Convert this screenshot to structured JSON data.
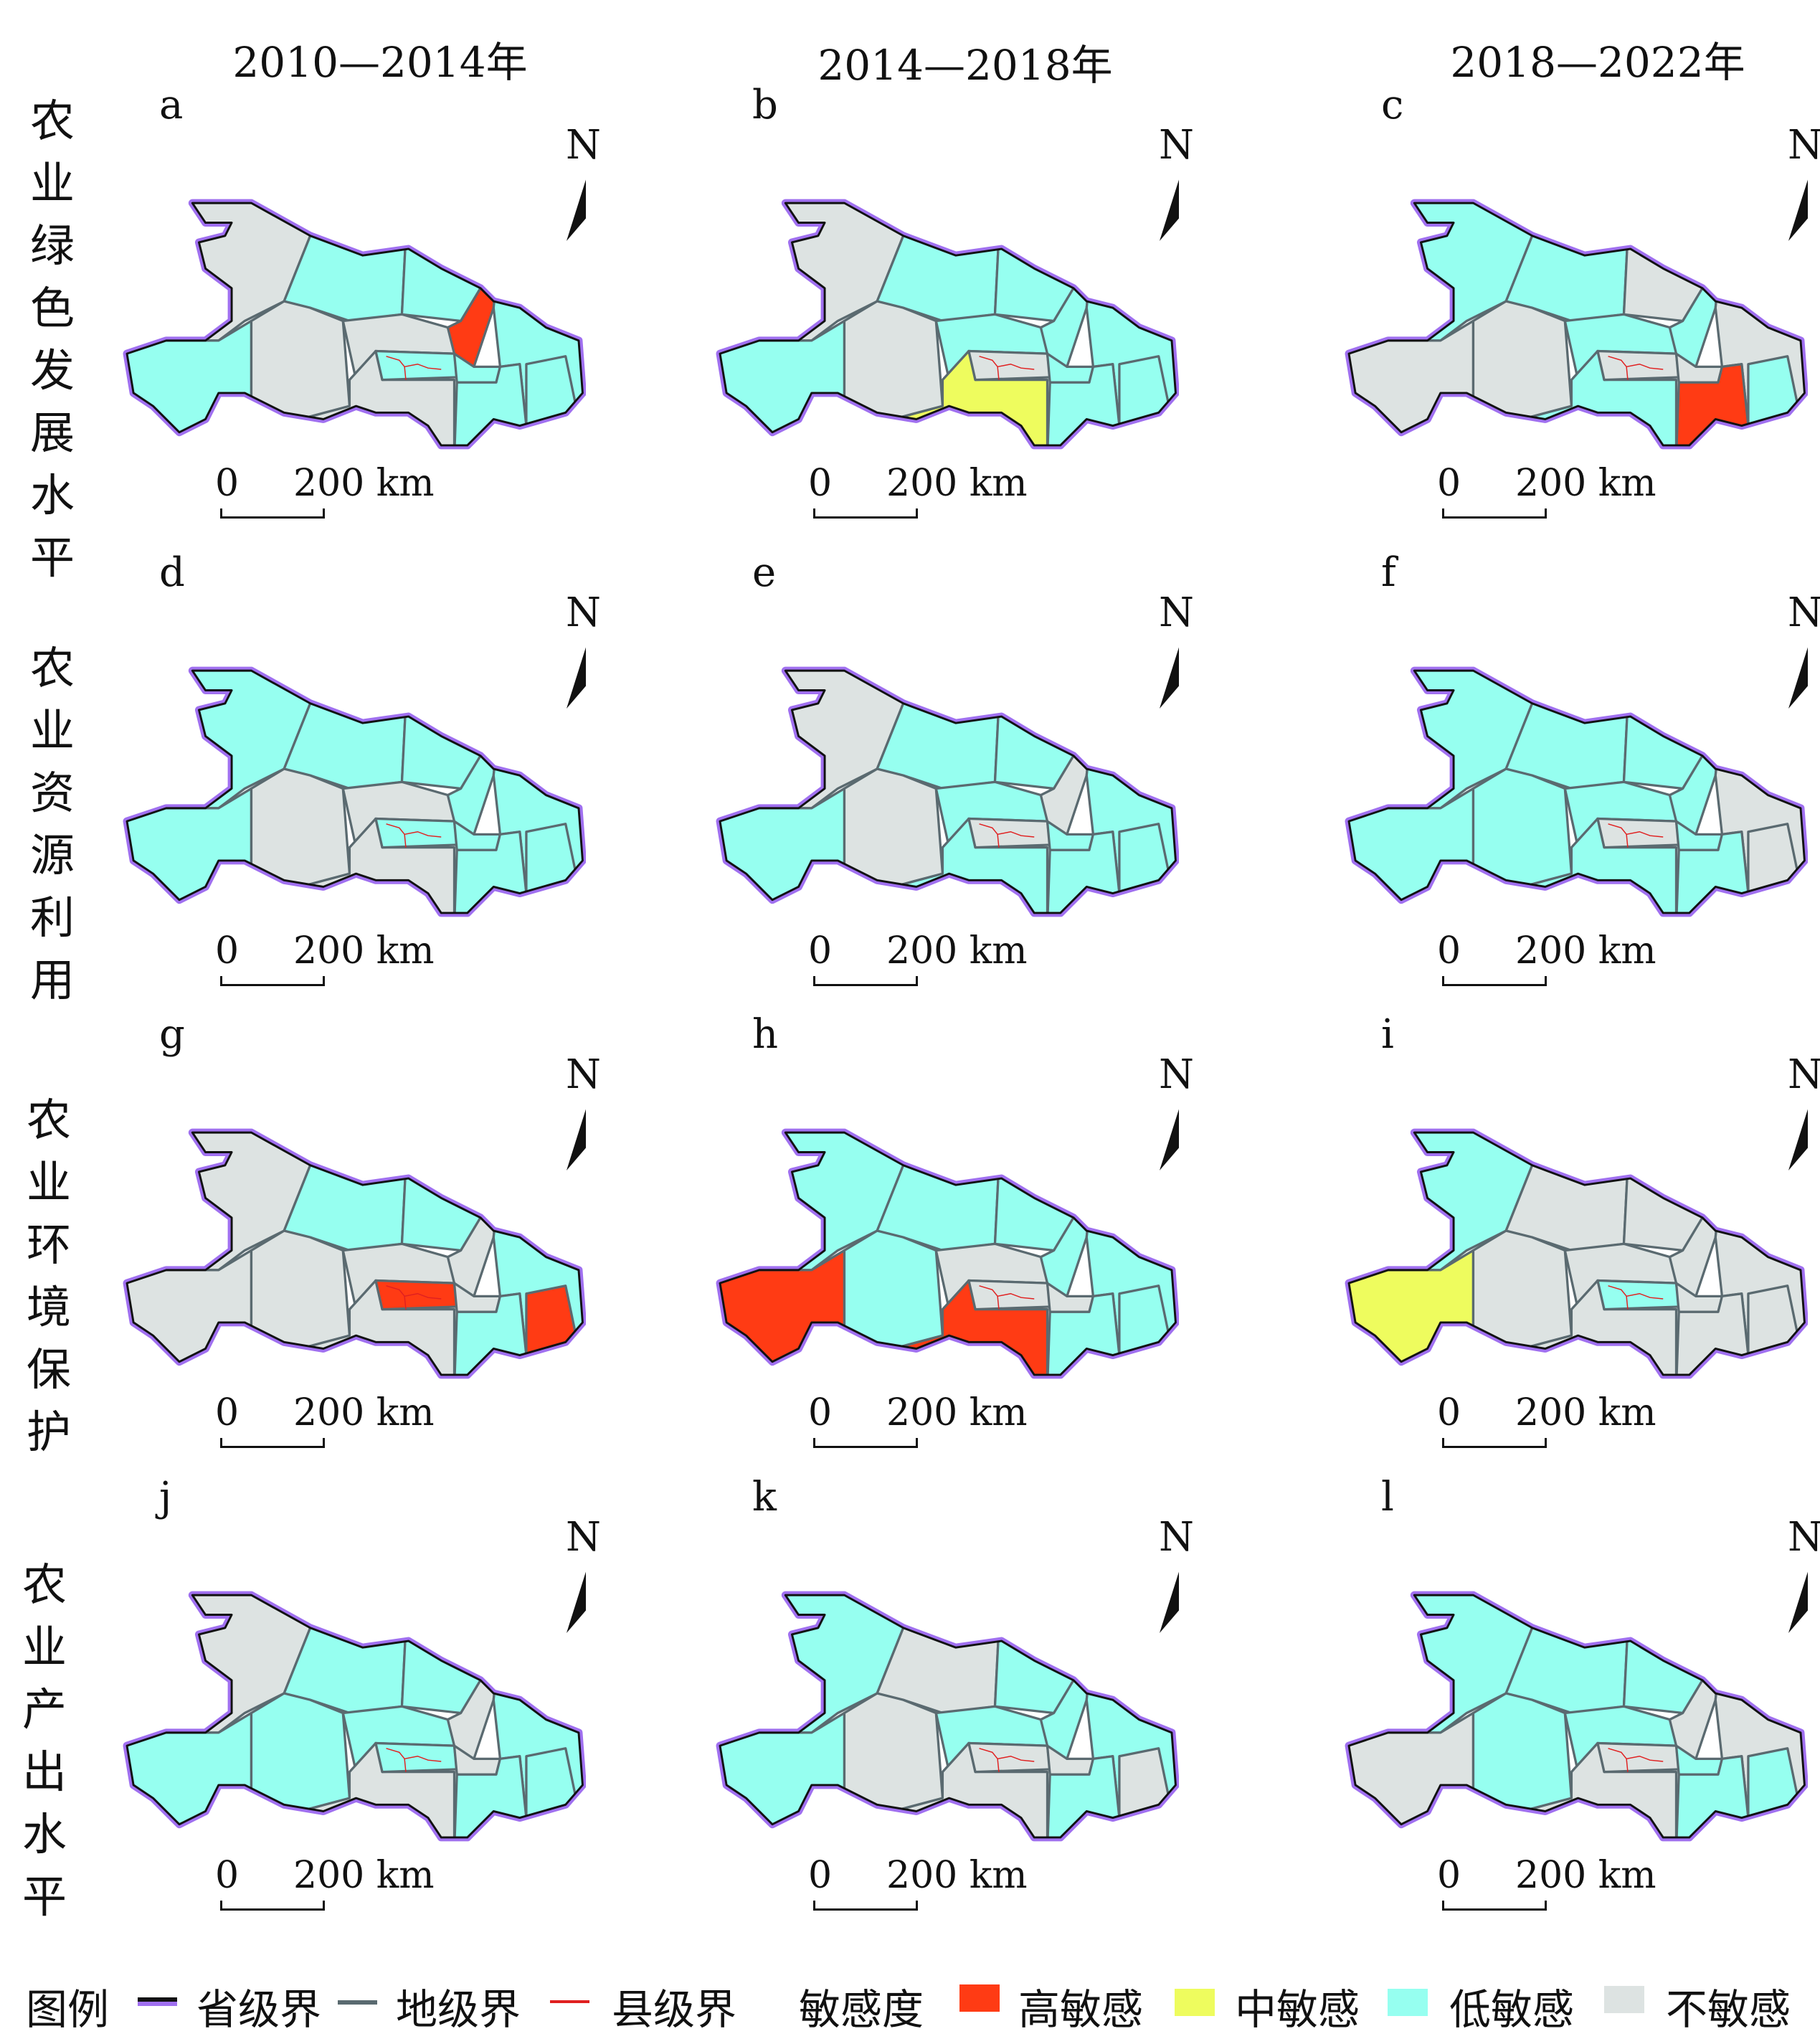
{
  "column_headers": [
    "2010—2014年",
    "2014—2018年",
    "2018—2022年"
  ],
  "row_labels": [
    "农业绿色发展水平",
    "农业资源利用",
    "农业环境保护",
    "农业产出水平"
  ],
  "colors": {
    "H": "#ff3b14",
    "M": "#eefc5e",
    "L": "#96fff0",
    "N": "#dde3e2",
    "province_border": "#a070f0",
    "city_border": "#5a6a70",
    "county_border": "#e02020"
  },
  "scale_bar": {
    "zero": "0",
    "distance": "200 km"
  },
  "north_label": "N",
  "panels": [
    {
      "letter": "a",
      "regions": [
        "N",
        "L",
        "L",
        "L",
        "H",
        "N",
        "N",
        "N",
        "L",
        "L",
        "L",
        "L",
        "L"
      ]
    },
    {
      "letter": "b",
      "regions": [
        "N",
        "L",
        "L",
        "L",
        "L",
        "N",
        "L",
        "M",
        "N",
        "L",
        "L",
        "L",
        "L"
      ]
    },
    {
      "letter": "c",
      "regions": [
        "L",
        "N",
        "L",
        "N",
        "L",
        "N",
        "L",
        "L",
        "N",
        "N",
        "N",
        "H",
        "L"
      ]
    },
    {
      "letter": "d",
      "regions": [
        "L",
        "L",
        "L",
        "L",
        "L",
        "N",
        "N",
        "N",
        "L",
        "L",
        "L",
        "L",
        "L"
      ]
    },
    {
      "letter": "e",
      "regions": [
        "N",
        "L",
        "L",
        "L",
        "N",
        "N",
        "L",
        "L",
        "N",
        "L",
        "L",
        "L",
        "L"
      ]
    },
    {
      "letter": "f",
      "regions": [
        "L",
        "L",
        "L",
        "L",
        "L",
        "L",
        "L",
        "L",
        "N",
        "L",
        "N",
        "L",
        "N"
      ]
    },
    {
      "letter": "g",
      "regions": [
        "N",
        "N",
        "L",
        "L",
        "N",
        "N",
        "N",
        "N",
        "H",
        "N",
        "L",
        "L",
        "H"
      ]
    },
    {
      "letter": "h",
      "regions": [
        "L",
        "H",
        "L",
        "L",
        "L",
        "L",
        "N",
        "H",
        "N",
        "N",
        "L",
        "L",
        "L"
      ]
    },
    {
      "letter": "i",
      "regions": [
        "L",
        "M",
        "N",
        "N",
        "N",
        "N",
        "N",
        "N",
        "L",
        "N",
        "N",
        "N",
        "N"
      ]
    },
    {
      "letter": "j",
      "regions": [
        "N",
        "L",
        "L",
        "L",
        "N",
        "L",
        "L",
        "N",
        "L",
        "N",
        "L",
        "L",
        "L"
      ]
    },
    {
      "letter": "k",
      "regions": [
        "L",
        "L",
        "N",
        "L",
        "L",
        "N",
        "L",
        "N",
        "N",
        "N",
        "L",
        "L",
        "N"
      ]
    },
    {
      "letter": "l",
      "regions": [
        "L",
        "N",
        "L",
        "L",
        "N",
        "L",
        "L",
        "N",
        "N",
        "L",
        "N",
        "L",
        "L"
      ]
    }
  ],
  "legend": {
    "title": "图例",
    "province": "省级界",
    "city": "地级界",
    "county": "县级界",
    "sensitivity_title": "敏感度",
    "high": "高敏感",
    "medium": "中敏感",
    "low": "低敏感",
    "none": "不敏感"
  }
}
